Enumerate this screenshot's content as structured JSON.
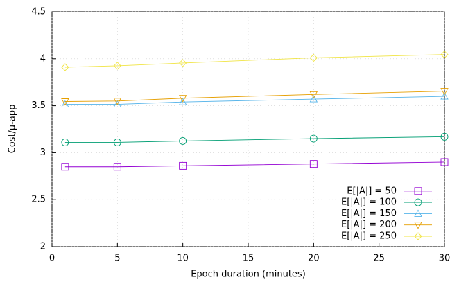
{
  "chart_data": {
    "type": "line",
    "xlabel": "Epoch duration (minutes)",
    "ylabel": "Cost/μ-app",
    "x": [
      1,
      5,
      10,
      20,
      30
    ],
    "series": [
      {
        "name": "E[|A|] = 50",
        "color": "#9400d3",
        "marker": "square",
        "values": [
          2.85,
          2.85,
          2.86,
          2.88,
          2.9
        ]
      },
      {
        "name": "E[|A|] = 100",
        "color": "#009e73",
        "marker": "circle",
        "values": [
          3.11,
          3.11,
          3.125,
          3.15,
          3.17
        ]
      },
      {
        "name": "E[|A|] = 150",
        "color": "#56b4e9",
        "marker": "triangle",
        "values": [
          3.515,
          3.515,
          3.54,
          3.57,
          3.6
        ]
      },
      {
        "name": "E[|A|] = 200",
        "color": "#e69f00",
        "marker": "triangle-down",
        "values": [
          3.545,
          3.55,
          3.58,
          3.62,
          3.655
        ]
      },
      {
        "name": "E[|A|] = 250",
        "color": "#f0e442",
        "marker": "diamond",
        "values": [
          3.91,
          3.925,
          3.955,
          4.01,
          4.045
        ]
      }
    ],
    "xlim": [
      0,
      30
    ],
    "xticks": [
      0,
      5,
      10,
      15,
      20,
      25,
      30
    ],
    "ylim": [
      2,
      4.5
    ],
    "yticks": [
      2,
      2.5,
      3,
      3.5,
      4,
      4.5
    ],
    "grid": true,
    "legend": "bottom-right"
  }
}
